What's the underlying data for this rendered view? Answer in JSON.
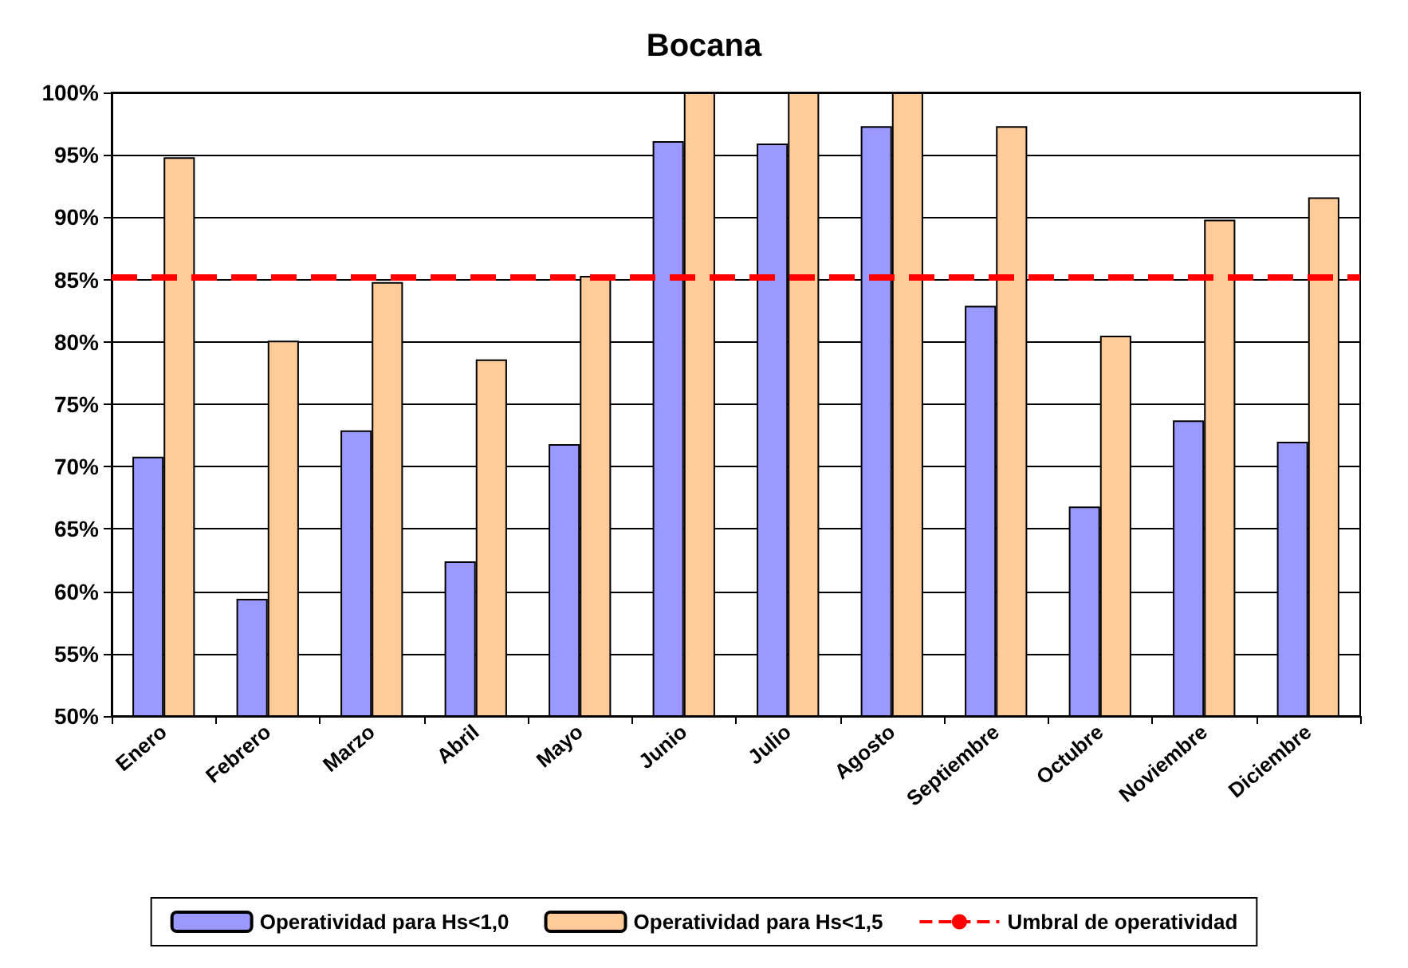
{
  "chart_data": {
    "type": "bar",
    "title": "Bocana",
    "categories": [
      "Enero",
      "Febrero",
      "Marzo",
      "Abril",
      "Mayo",
      "Junio",
      "Julio",
      "Agosto",
      "Septiembre",
      "Octubre",
      "Noviembre",
      "Diciembre"
    ],
    "series": [
      {
        "name": "Operatividad para Hs<1,0",
        "color": "#9999ff",
        "values": [
          70.8,
          59.4,
          72.9,
          62.4,
          71.8,
          96.1,
          95.9,
          97.3,
          82.9,
          66.8,
          73.7,
          72.0
        ]
      },
      {
        "name": "Operatividad para Hs<1,5",
        "color": "#ffcc99",
        "values": [
          94.8,
          80.1,
          84.8,
          78.6,
          85.3,
          100,
          100,
          100,
          97.3,
          80.5,
          89.8,
          91.6
        ]
      }
    ],
    "ref_lines": [
      {
        "axis": "y",
        "value": 85.2,
        "label": "Umbral de operatividad",
        "color": "#ff0000",
        "line_style": "dashed"
      }
    ],
    "ylim": [
      50,
      100
    ],
    "yticks": [
      {
        "value": 50,
        "label": "50%"
      },
      {
        "value": 55,
        "label": "55%"
      },
      {
        "value": 60,
        "label": "60%"
      },
      {
        "value": 65,
        "label": "65%"
      },
      {
        "value": 70,
        "label": "70%"
      },
      {
        "value": 75,
        "label": "75%"
      },
      {
        "value": 80,
        "label": "80%"
      },
      {
        "value": 85,
        "label": "85%"
      },
      {
        "value": 90,
        "label": "90%"
      },
      {
        "value": 95,
        "label": "95%"
      },
      {
        "value": 100,
        "label": "100%"
      }
    ],
    "grid": "y",
    "legend": "bottom"
  }
}
